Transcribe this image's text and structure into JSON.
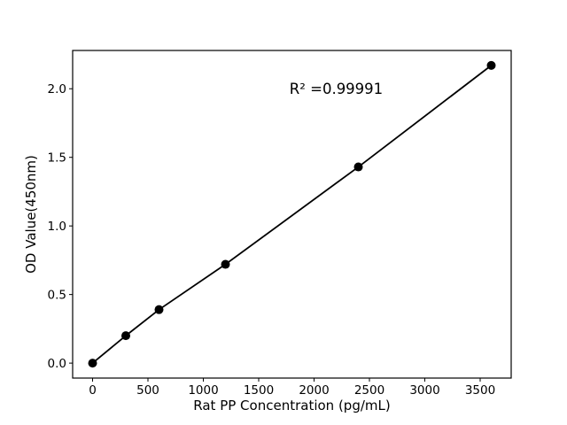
{
  "chart_data": {
    "type": "scatter",
    "title": "",
    "xlabel": "Rat PP Concentration (pg/mL)",
    "ylabel": "OD Value(450nm)",
    "x": [
      0,
      300,
      600,
      1200,
      2400,
      3600
    ],
    "y": [
      0.0,
      0.2,
      0.39,
      0.72,
      1.43,
      2.17
    ],
    "xlim": [
      -180,
      3780
    ],
    "ylim": [
      -0.109,
      2.279
    ],
    "xticks": [
      0,
      500,
      1000,
      1500,
      2000,
      2500,
      3000,
      3500
    ],
    "xtick_labels": [
      "0",
      "500",
      "1000",
      "1500",
      "2000",
      "2500",
      "3000",
      "3500"
    ],
    "yticks": [
      0.0,
      0.5,
      1.0,
      1.5,
      2.0
    ],
    "ytick_labels": [
      "0.0",
      "0.5",
      "1.0",
      "1.5",
      "2.0"
    ],
    "annotation": {
      "text": "R² =0.99991",
      "x": 2200,
      "y": 2.0
    },
    "grid": false,
    "legend": null,
    "colors": {
      "line": "#000000",
      "marker": "#000000",
      "text": "#000000",
      "background": "#ffffff"
    }
  }
}
